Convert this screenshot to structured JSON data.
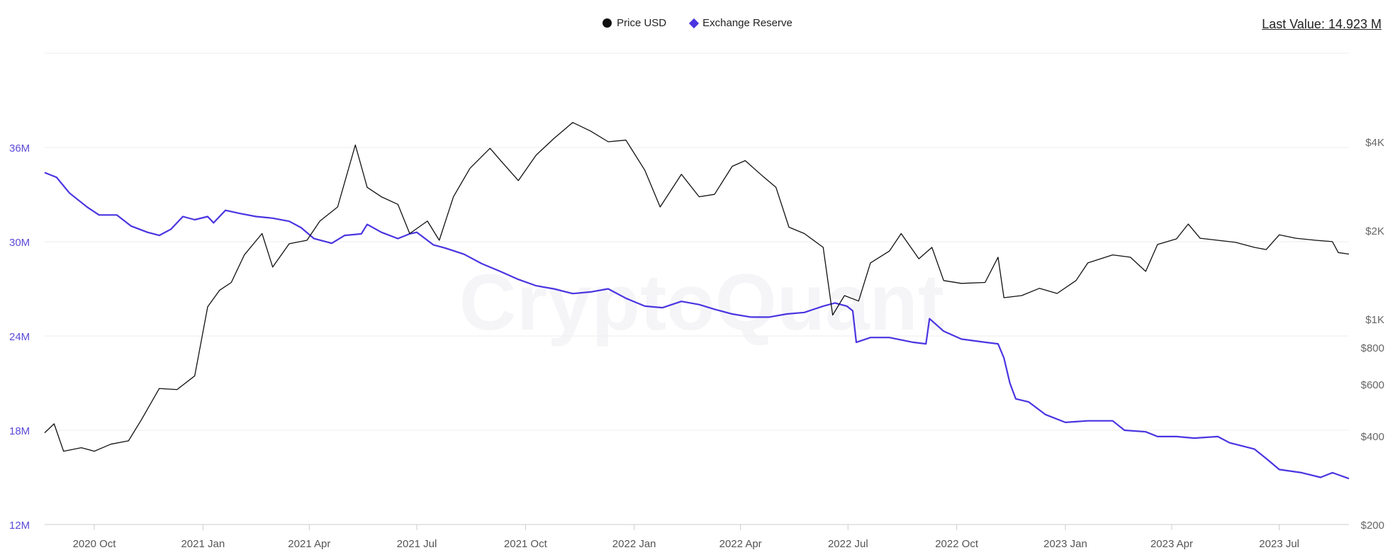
{
  "legend": {
    "items": [
      {
        "label": "Price USD",
        "color": "#111111",
        "marker": "circle"
      },
      {
        "label": "Exchange Reserve",
        "color": "#4a35e0",
        "marker": "diamond"
      }
    ]
  },
  "last_value": "Last Value: 14.923 M",
  "watermark": "CryptoQuant",
  "chart_data": {
    "type": "line",
    "x_start": "2020-08-20",
    "x_end": "2023-08-29",
    "x_ticks": [
      {
        "label": "2020 Oct",
        "date": "2020-10-01"
      },
      {
        "label": "2021 Jan",
        "date": "2021-01-01"
      },
      {
        "label": "2021 Apr",
        "date": "2021-04-01"
      },
      {
        "label": "2021 Jul",
        "date": "2021-07-01"
      },
      {
        "label": "2021 Oct",
        "date": "2021-10-01"
      },
      {
        "label": "2022 Jan",
        "date": "2022-01-01"
      },
      {
        "label": "2022 Apr",
        "date": "2022-04-01"
      },
      {
        "label": "2022 Jul",
        "date": "2022-07-01"
      },
      {
        "label": "2022 Oct",
        "date": "2022-10-01"
      },
      {
        "label": "2023 Jan",
        "date": "2023-01-01"
      },
      {
        "label": "2023 Apr",
        "date": "2023-04-01"
      },
      {
        "label": "2023 Jul",
        "date": "2023-07-01"
      }
    ],
    "y_left": {
      "label": "",
      "min": 12,
      "max": 42,
      "unit": "M",
      "ticks": [
        {
          "label": "12M",
          "value": 12
        },
        {
          "label": "18M",
          "value": 18
        },
        {
          "label": "24M",
          "value": 24
        },
        {
          "label": "30M",
          "value": 30
        },
        {
          "label": "36M",
          "value": 36
        }
      ]
    },
    "y_right": {
      "label": "",
      "scale": "log",
      "min": 200,
      "max": 8000,
      "ticks": [
        {
          "label": "$200",
          "value": 200
        },
        {
          "label": "$400",
          "value": 400
        },
        {
          "label": "$600",
          "value": 600
        },
        {
          "label": "$800",
          "value": 800
        },
        {
          "label": "$1K",
          "value": 1000
        },
        {
          "label": "$2K",
          "value": 2000
        },
        {
          "label": "$4K",
          "value": 4000
        }
      ]
    },
    "grid": true,
    "legend_position": "top-center",
    "series": [
      {
        "name": "Exchange Reserve",
        "axis": "left",
        "color": "#4a35e0",
        "points": [
          [
            "2020-08-20",
            34.4
          ],
          [
            "2020-08-30",
            34.1
          ],
          [
            "2020-09-10",
            33.1
          ],
          [
            "2020-09-25",
            32.2
          ],
          [
            "2020-10-05",
            31.7
          ],
          [
            "2020-10-20",
            31.7
          ],
          [
            "2020-11-01",
            31.0
          ],
          [
            "2020-11-15",
            30.6
          ],
          [
            "2020-11-25",
            30.4
          ],
          [
            "2020-12-05",
            30.8
          ],
          [
            "2020-12-15",
            31.6
          ],
          [
            "2020-12-25",
            31.4
          ],
          [
            "2021-01-05",
            31.6
          ],
          [
            "2021-01-10",
            31.2
          ],
          [
            "2021-01-20",
            32.0
          ],
          [
            "2021-02-01",
            31.8
          ],
          [
            "2021-02-15",
            31.6
          ],
          [
            "2021-03-01",
            31.5
          ],
          [
            "2021-03-15",
            31.3
          ],
          [
            "2021-03-25",
            30.9
          ],
          [
            "2021-04-05",
            30.2
          ],
          [
            "2021-04-20",
            29.9
          ],
          [
            "2021-05-01",
            30.4
          ],
          [
            "2021-05-15",
            30.5
          ],
          [
            "2021-05-20",
            31.1
          ],
          [
            "2021-06-01",
            30.6
          ],
          [
            "2021-06-15",
            30.2
          ],
          [
            "2021-06-25",
            30.5
          ],
          [
            "2021-07-01",
            30.6
          ],
          [
            "2021-07-15",
            29.8
          ],
          [
            "2021-07-25",
            29.6
          ],
          [
            "2021-08-10",
            29.2
          ],
          [
            "2021-08-25",
            28.6
          ],
          [
            "2021-09-10",
            28.1
          ],
          [
            "2021-09-25",
            27.6
          ],
          [
            "2021-10-10",
            27.2
          ],
          [
            "2021-10-25",
            27.0
          ],
          [
            "2021-11-10",
            26.7
          ],
          [
            "2021-11-25",
            26.8
          ],
          [
            "2021-12-10",
            27.0
          ],
          [
            "2021-12-25",
            26.4
          ],
          [
            "2022-01-10",
            25.9
          ],
          [
            "2022-01-25",
            25.8
          ],
          [
            "2022-02-10",
            26.2
          ],
          [
            "2022-02-25",
            26.0
          ],
          [
            "2022-03-10",
            25.7
          ],
          [
            "2022-03-25",
            25.4
          ],
          [
            "2022-04-10",
            25.2
          ],
          [
            "2022-04-25",
            25.2
          ],
          [
            "2022-05-10",
            25.4
          ],
          [
            "2022-05-25",
            25.5
          ],
          [
            "2022-06-10",
            25.9
          ],
          [
            "2022-06-20",
            26.1
          ],
          [
            "2022-06-30",
            25.9
          ],
          [
            "2022-07-05",
            25.6
          ],
          [
            "2022-07-08",
            23.6
          ],
          [
            "2022-07-20",
            23.9
          ],
          [
            "2022-08-05",
            23.9
          ],
          [
            "2022-08-25",
            23.6
          ],
          [
            "2022-09-05",
            23.5
          ],
          [
            "2022-09-08",
            25.1
          ],
          [
            "2022-09-20",
            24.3
          ],
          [
            "2022-10-05",
            23.8
          ],
          [
            "2022-10-25",
            23.6
          ],
          [
            "2022-11-05",
            23.5
          ],
          [
            "2022-11-10",
            22.6
          ],
          [
            "2022-11-15",
            21.0
          ],
          [
            "2022-11-20",
            20.0
          ],
          [
            "2022-12-01",
            19.8
          ],
          [
            "2022-12-15",
            19.0
          ],
          [
            "2023-01-01",
            18.5
          ],
          [
            "2023-01-20",
            18.6
          ],
          [
            "2023-02-10",
            18.6
          ],
          [
            "2023-02-20",
            18.0
          ],
          [
            "2023-03-10",
            17.9
          ],
          [
            "2023-03-20",
            17.6
          ],
          [
            "2023-04-05",
            17.6
          ],
          [
            "2023-04-20",
            17.5
          ],
          [
            "2023-05-10",
            17.6
          ],
          [
            "2023-05-20",
            17.2
          ],
          [
            "2023-06-10",
            16.8
          ],
          [
            "2023-06-20",
            16.2
          ],
          [
            "2023-07-01",
            15.5
          ],
          [
            "2023-07-20",
            15.3
          ],
          [
            "2023-08-05",
            15.0
          ],
          [
            "2023-08-15",
            15.3
          ],
          [
            "2023-08-29",
            14.923
          ]
        ]
      },
      {
        "name": "Price USD",
        "axis": "right",
        "color": "#111111",
        "points": [
          [
            "2020-08-20",
            410
          ],
          [
            "2020-08-28",
            440
          ],
          [
            "2020-09-05",
            355
          ],
          [
            "2020-09-20",
            365
          ],
          [
            "2020-10-01",
            355
          ],
          [
            "2020-10-15",
            375
          ],
          [
            "2020-10-30",
            385
          ],
          [
            "2020-11-10",
            455
          ],
          [
            "2020-11-25",
            580
          ],
          [
            "2020-12-10",
            575
          ],
          [
            "2020-12-25",
            640
          ],
          [
            "2021-01-05",
            1100
          ],
          [
            "2021-01-15",
            1250
          ],
          [
            "2021-01-25",
            1330
          ],
          [
            "2021-02-05",
            1650
          ],
          [
            "2021-02-20",
            1950
          ],
          [
            "2021-03-01",
            1500
          ],
          [
            "2021-03-15",
            1800
          ],
          [
            "2021-03-30",
            1850
          ],
          [
            "2021-04-10",
            2150
          ],
          [
            "2021-04-25",
            2400
          ],
          [
            "2021-05-10",
            3900
          ],
          [
            "2021-05-20",
            2800
          ],
          [
            "2021-06-01",
            2600
          ],
          [
            "2021-06-15",
            2450
          ],
          [
            "2021-06-25",
            1950
          ],
          [
            "2021-07-10",
            2150
          ],
          [
            "2021-07-20",
            1850
          ],
          [
            "2021-08-01",
            2600
          ],
          [
            "2021-08-15",
            3250
          ],
          [
            "2021-09-01",
            3800
          ],
          [
            "2021-09-10",
            3450
          ],
          [
            "2021-09-25",
            2950
          ],
          [
            "2021-10-10",
            3600
          ],
          [
            "2021-10-25",
            4100
          ],
          [
            "2021-11-10",
            4650
          ],
          [
            "2021-11-25",
            4350
          ],
          [
            "2021-12-10",
            4000
          ],
          [
            "2021-12-25",
            4050
          ],
          [
            "2022-01-10",
            3200
          ],
          [
            "2022-01-23",
            2400
          ],
          [
            "2022-02-10",
            3100
          ],
          [
            "2022-02-25",
            2600
          ],
          [
            "2022-03-10",
            2650
          ],
          [
            "2022-03-25",
            3300
          ],
          [
            "2022-04-05",
            3450
          ],
          [
            "2022-04-20",
            3050
          ],
          [
            "2022-05-01",
            2800
          ],
          [
            "2022-05-12",
            2050
          ],
          [
            "2022-05-25",
            1950
          ],
          [
            "2022-06-10",
            1750
          ],
          [
            "2022-06-18",
            1030
          ],
          [
            "2022-06-28",
            1200
          ],
          [
            "2022-07-10",
            1150
          ],
          [
            "2022-07-20",
            1550
          ],
          [
            "2022-08-05",
            1700
          ],
          [
            "2022-08-15",
            1950
          ],
          [
            "2022-08-30",
            1600
          ],
          [
            "2022-09-10",
            1750
          ],
          [
            "2022-09-20",
            1350
          ],
          [
            "2022-10-05",
            1320
          ],
          [
            "2022-10-25",
            1330
          ],
          [
            "2022-11-05",
            1620
          ],
          [
            "2022-11-10",
            1180
          ],
          [
            "2022-11-25",
            1200
          ],
          [
            "2022-12-10",
            1270
          ],
          [
            "2022-12-25",
            1220
          ],
          [
            "2023-01-10",
            1350
          ],
          [
            "2023-01-20",
            1550
          ],
          [
            "2023-02-10",
            1650
          ],
          [
            "2023-02-25",
            1620
          ],
          [
            "2023-03-10",
            1450
          ],
          [
            "2023-03-20",
            1790
          ],
          [
            "2023-04-05",
            1870
          ],
          [
            "2023-04-15",
            2100
          ],
          [
            "2023-04-25",
            1880
          ],
          [
            "2023-05-10",
            1850
          ],
          [
            "2023-05-25",
            1820
          ],
          [
            "2023-06-10",
            1750
          ],
          [
            "2023-06-20",
            1720
          ],
          [
            "2023-07-01",
            1930
          ],
          [
            "2023-07-15",
            1880
          ],
          [
            "2023-08-01",
            1850
          ],
          [
            "2023-08-15",
            1830
          ],
          [
            "2023-08-20",
            1680
          ],
          [
            "2023-08-29",
            1660
          ]
        ]
      }
    ]
  }
}
